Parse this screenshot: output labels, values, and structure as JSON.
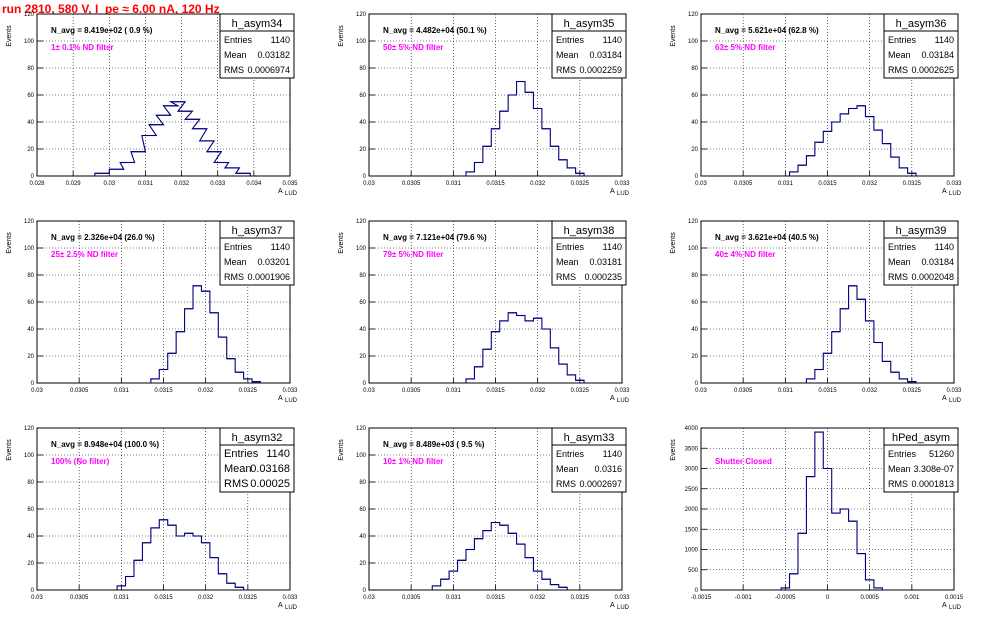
{
  "page_title": "run 2810,   580 V, I_pe ≈ 6.00 nA, 120 Hz",
  "chart_data": [
    {
      "type": "histogram",
      "name": "h_asym34",
      "n_avg": "N_avg = 8.419e+02 ( 0.9 %)",
      "filter": "1± 0.1% ND filter",
      "entries": "1140",
      "mean": "0.03182",
      "rms": "0.0006974",
      "xlim": [
        0.028,
        0.035
      ],
      "xticks": [
        "0.028",
        "0.029",
        "0.03",
        "0.031",
        "0.032",
        "0.033",
        "0.034",
        "0.035"
      ],
      "ylim": [
        0,
        120
      ],
      "yticks": [
        "0",
        "20",
        "40",
        "60",
        "80",
        "100",
        "120"
      ],
      "ylabel": "Events",
      "xlabel": "A",
      "bins": [
        {
          "x": 0.0298,
          "y": 2
        },
        {
          "x": 0.0302,
          "y": 5
        },
        {
          "x": 0.0305,
          "y": 10
        },
        {
          "x": 0.0308,
          "y": 18
        },
        {
          "x": 0.0311,
          "y": 30
        },
        {
          "x": 0.0313,
          "y": 38
        },
        {
          "x": 0.0315,
          "y": 45
        },
        {
          "x": 0.0317,
          "y": 52
        },
        {
          "x": 0.0319,
          "y": 55
        },
        {
          "x": 0.0321,
          "y": 48
        },
        {
          "x": 0.0323,
          "y": 42
        },
        {
          "x": 0.0325,
          "y": 35
        },
        {
          "x": 0.0327,
          "y": 26
        },
        {
          "x": 0.0329,
          "y": 18
        },
        {
          "x": 0.0331,
          "y": 10
        },
        {
          "x": 0.0334,
          "y": 6
        },
        {
          "x": 0.0337,
          "y": 2
        }
      ]
    },
    {
      "type": "histogram",
      "name": "h_asym35",
      "n_avg": "N_avg = 4.482e+04 (50.1 %)",
      "filter": "50± 5% ND filter",
      "entries": "1140",
      "mean": "0.03184",
      "rms": "0.0002259",
      "xlim": [
        0.03,
        0.033
      ],
      "xticks": [
        "0.03",
        "0.0305",
        "0.031",
        "0.0315",
        "0.032",
        "0.0325",
        "0.033"
      ],
      "ylim": [
        0,
        120
      ],
      "yticks": [
        "0",
        "20",
        "40",
        "60",
        "80",
        "100",
        "120"
      ],
      "ylabel": "Events",
      "xlabel": "A",
      "bins": [
        {
          "x": 0.0312,
          "y": 3
        },
        {
          "x": 0.0313,
          "y": 10
        },
        {
          "x": 0.0314,
          "y": 22
        },
        {
          "x": 0.0315,
          "y": 35
        },
        {
          "x": 0.0316,
          "y": 48
        },
        {
          "x": 0.0317,
          "y": 60
        },
        {
          "x": 0.0318,
          "y": 70
        },
        {
          "x": 0.0319,
          "y": 62
        },
        {
          "x": 0.032,
          "y": 50
        },
        {
          "x": 0.0321,
          "y": 35
        },
        {
          "x": 0.0322,
          "y": 22
        },
        {
          "x": 0.0323,
          "y": 12
        },
        {
          "x": 0.0324,
          "y": 6
        },
        {
          "x": 0.0325,
          "y": 2
        }
      ]
    },
    {
      "type": "histogram",
      "name": "h_asym36",
      "n_avg": "N_avg = 5.621e+04 (62.8 %)",
      "filter": "63± 5% ND filter",
      "entries": "1140",
      "mean": "0.03184",
      "rms": "0.0002625",
      "xlim": [
        0.03,
        0.033
      ],
      "xticks": [
        "0.03",
        "0.0305",
        "0.031",
        "0.0315",
        "0.032",
        "0.0325",
        "0.033"
      ],
      "ylim": [
        0,
        120
      ],
      "yticks": [
        "0",
        "20",
        "40",
        "60",
        "80",
        "100",
        "120"
      ],
      "ylabel": "Events",
      "xlabel": "A",
      "bins": [
        {
          "x": 0.0311,
          "y": 3
        },
        {
          "x": 0.0312,
          "y": 8
        },
        {
          "x": 0.0313,
          "y": 15
        },
        {
          "x": 0.0314,
          "y": 25
        },
        {
          "x": 0.0315,
          "y": 33
        },
        {
          "x": 0.0316,
          "y": 40
        },
        {
          "x": 0.0317,
          "y": 46
        },
        {
          "x": 0.0318,
          "y": 50
        },
        {
          "x": 0.0319,
          "y": 52
        },
        {
          "x": 0.032,
          "y": 44
        },
        {
          "x": 0.0321,
          "y": 34
        },
        {
          "x": 0.0322,
          "y": 24
        },
        {
          "x": 0.0323,
          "y": 14
        },
        {
          "x": 0.0324,
          "y": 6
        },
        {
          "x": 0.0325,
          "y": 2
        }
      ]
    },
    {
      "type": "histogram",
      "name": "h_asym37",
      "n_avg": "N_avg = 2.326e+04 (26.0 %)",
      "filter": "25± 2.5% ND filter",
      "entries": "1140",
      "mean": "0.03201",
      "rms": "0.0001906",
      "xlim": [
        0.03,
        0.033
      ],
      "xticks": [
        "0.03",
        "0.0305",
        "0.031",
        "0.0315",
        "0.032",
        "0.0325",
        "0.033"
      ],
      "ylim": [
        0,
        120
      ],
      "yticks": [
        "0",
        "20",
        "40",
        "60",
        "80",
        "100",
        "120"
      ],
      "ylabel": "Events",
      "xlabel": "A",
      "bins": [
        {
          "x": 0.0314,
          "y": 3
        },
        {
          "x": 0.0315,
          "y": 10
        },
        {
          "x": 0.0316,
          "y": 22
        },
        {
          "x": 0.0317,
          "y": 38
        },
        {
          "x": 0.0318,
          "y": 55
        },
        {
          "x": 0.0319,
          "y": 72
        },
        {
          "x": 0.032,
          "y": 68
        },
        {
          "x": 0.0321,
          "y": 52
        },
        {
          "x": 0.0322,
          "y": 34
        },
        {
          "x": 0.0323,
          "y": 18
        },
        {
          "x": 0.0324,
          "y": 8
        },
        {
          "x": 0.0325,
          "y": 3
        },
        {
          "x": 0.0326,
          "y": 1
        }
      ]
    },
    {
      "type": "histogram",
      "name": "h_asym38",
      "n_avg": "N_avg = 7.121e+04 (79.6 %)",
      "filter": "79± 5% ND filter",
      "entries": "1140",
      "mean": "0.03181",
      "rms": "0.000235",
      "xlim": [
        0.03,
        0.033
      ],
      "xticks": [
        "0.03",
        "0.0305",
        "0.031",
        "0.0315",
        "0.032",
        "0.0325",
        "0.033"
      ],
      "ylim": [
        0,
        120
      ],
      "yticks": [
        "0",
        "20",
        "40",
        "60",
        "80",
        "100",
        "120"
      ],
      "ylabel": "Events",
      "xlabel": "A",
      "bins": [
        {
          "x": 0.0312,
          "y": 3
        },
        {
          "x": 0.0313,
          "y": 12
        },
        {
          "x": 0.0314,
          "y": 25
        },
        {
          "x": 0.0315,
          "y": 38
        },
        {
          "x": 0.0316,
          "y": 46
        },
        {
          "x": 0.0317,
          "y": 52
        },
        {
          "x": 0.0318,
          "y": 50
        },
        {
          "x": 0.0319,
          "y": 46
        },
        {
          "x": 0.032,
          "y": 48
        },
        {
          "x": 0.0321,
          "y": 40
        },
        {
          "x": 0.0322,
          "y": 26
        },
        {
          "x": 0.0323,
          "y": 14
        },
        {
          "x": 0.0324,
          "y": 6
        },
        {
          "x": 0.0325,
          "y": 2
        }
      ]
    },
    {
      "type": "histogram",
      "name": "h_asym39",
      "n_avg": "N_avg = 3.621e+04 (40.5 %)",
      "filter": "40± 4% ND filter",
      "entries": "1140",
      "mean": "0.03184",
      "rms": "0.0002048",
      "xlim": [
        0.03,
        0.033
      ],
      "xticks": [
        "0.03",
        "0.0305",
        "0.031",
        "0.0315",
        "0.032",
        "0.0325",
        "0.033"
      ],
      "ylim": [
        0,
        120
      ],
      "yticks": [
        "0",
        "20",
        "40",
        "60",
        "80",
        "100",
        "120"
      ],
      "ylabel": "Events",
      "xlabel": "A",
      "bins": [
        {
          "x": 0.0313,
          "y": 3
        },
        {
          "x": 0.0314,
          "y": 10
        },
        {
          "x": 0.0315,
          "y": 22
        },
        {
          "x": 0.0316,
          "y": 38
        },
        {
          "x": 0.0317,
          "y": 55
        },
        {
          "x": 0.0318,
          "y": 72
        },
        {
          "x": 0.0319,
          "y": 62
        },
        {
          "x": 0.032,
          "y": 46
        },
        {
          "x": 0.0321,
          "y": 30
        },
        {
          "x": 0.0322,
          "y": 16
        },
        {
          "x": 0.0323,
          "y": 8
        },
        {
          "x": 0.0324,
          "y": 3
        },
        {
          "x": 0.0325,
          "y": 1
        }
      ]
    },
    {
      "type": "histogram",
      "name": "h_asym32",
      "n_avg": "N_avg = 8.948e+04 (100.0 %)",
      "filter": "100% (No filter)",
      "entries": "1140",
      "mean": "0.03168",
      "rms": "0.00025",
      "xlim": [
        0.03,
        0.033
      ],
      "xticks": [
        "0.03",
        "0.0305",
        "0.031",
        "0.0315",
        "0.032",
        "0.0325",
        "0.033"
      ],
      "ylim": [
        0,
        120
      ],
      "yticks": [
        "0",
        "20",
        "40",
        "60",
        "80",
        "100",
        "120"
      ],
      "ylabel": "Events",
      "xlabel": "A",
      "bins": [
        {
          "x": 0.031,
          "y": 3
        },
        {
          "x": 0.0311,
          "y": 10
        },
        {
          "x": 0.0312,
          "y": 22
        },
        {
          "x": 0.0313,
          "y": 35
        },
        {
          "x": 0.0314,
          "y": 46
        },
        {
          "x": 0.0315,
          "y": 52
        },
        {
          "x": 0.0316,
          "y": 48
        },
        {
          "x": 0.0317,
          "y": 40
        },
        {
          "x": 0.0318,
          "y": 42
        },
        {
          "x": 0.0319,
          "y": 40
        },
        {
          "x": 0.032,
          "y": 35
        },
        {
          "x": 0.0321,
          "y": 24
        },
        {
          "x": 0.0322,
          "y": 12
        },
        {
          "x": 0.0323,
          "y": 5
        },
        {
          "x": 0.0324,
          "y": 2
        }
      ]
    },
    {
      "type": "histogram",
      "name": "h_asym33",
      "n_avg": "N_avg = 8.489e+03 ( 9.5 %)",
      "filter": "10± 1% ND filter",
      "entries": "1140",
      "mean": "0.0316",
      "rms": "0.0002697",
      "xlim": [
        0.03,
        0.033
      ],
      "xticks": [
        "0.03",
        "0.0305",
        "0.031",
        "0.0315",
        "0.032",
        "0.0325",
        "0.033"
      ],
      "ylim": [
        0,
        120
      ],
      "yticks": [
        "0",
        "20",
        "40",
        "60",
        "80",
        "100",
        "120"
      ],
      "ylabel": "Events",
      "xlabel": "A",
      "bins": [
        {
          "x": 0.0308,
          "y": 3
        },
        {
          "x": 0.0309,
          "y": 8
        },
        {
          "x": 0.031,
          "y": 14
        },
        {
          "x": 0.0311,
          "y": 22
        },
        {
          "x": 0.0312,
          "y": 30
        },
        {
          "x": 0.0313,
          "y": 38
        },
        {
          "x": 0.0314,
          "y": 44
        },
        {
          "x": 0.0315,
          "y": 50
        },
        {
          "x": 0.0316,
          "y": 48
        },
        {
          "x": 0.0317,
          "y": 42
        },
        {
          "x": 0.0318,
          "y": 34
        },
        {
          "x": 0.0319,
          "y": 24
        },
        {
          "x": 0.032,
          "y": 14
        },
        {
          "x": 0.0321,
          "y": 8
        },
        {
          "x": 0.0322,
          "y": 4
        },
        {
          "x": 0.0323,
          "y": 2
        }
      ]
    },
    {
      "type": "histogram",
      "name": "hPed_asym",
      "n_avg": "",
      "filter": "Shutter Closed",
      "entries": "51260",
      "mean": "3.308e-07",
      "rms": "0.0001813",
      "xlim": [
        -0.0015,
        0.0015
      ],
      "xticks": [
        "-0.0015",
        "-0.001",
        "-0.0005",
        "0",
        "0.0005",
        "0.001",
        "0.0015"
      ],
      "ylim": [
        0,
        4000
      ],
      "yticks": [
        "0",
        "500",
        "1000",
        "1500",
        "2000",
        "2500",
        "3000",
        "3500",
        "4000"
      ],
      "ylabel": "Events",
      "xlabel": "A",
      "bins": [
        {
          "x": -0.0005,
          "y": 50
        },
        {
          "x": -0.0004,
          "y": 400
        },
        {
          "x": -0.0003,
          "y": 1400
        },
        {
          "x": -0.0002,
          "y": 2800
        },
        {
          "x": -0.0001,
          "y": 3900
        },
        {
          "x": 0,
          "y": 3000
        },
        {
          "x": 0.0001,
          "y": 1900
        },
        {
          "x": 0.0002,
          "y": 2000
        },
        {
          "x": 0.0003,
          "y": 1700
        },
        {
          "x": 0.0004,
          "y": 900
        },
        {
          "x": 0.0005,
          "y": 250
        },
        {
          "x": 0.0006,
          "y": 50
        }
      ]
    }
  ]
}
